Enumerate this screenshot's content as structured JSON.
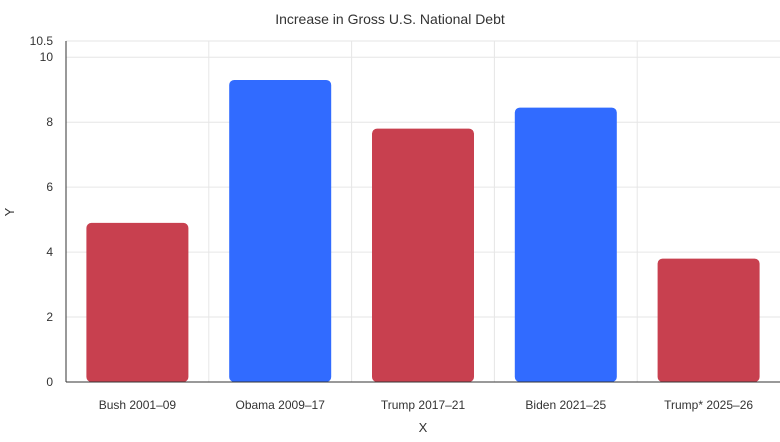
{
  "chart_data": {
    "type": "bar",
    "title": "Increase in Gross U.S. National Debt",
    "xlabel": "X",
    "ylabel": "Y",
    "categories": [
      "Bush 2001–09",
      "Obama 2009–17",
      "Trump 2017–21",
      "Biden 2021–25",
      "Trump* 2025–26"
    ],
    "values": [
      4.9,
      9.3,
      7.8,
      8.45,
      3.8
    ],
    "bar_colors": [
      "#c8404f",
      "#316bff",
      "#c8404f",
      "#316bff",
      "#c8404f"
    ],
    "ylim": [
      0,
      10.5
    ],
    "yticks": [
      0,
      2,
      4,
      6,
      8,
      10,
      10.5
    ],
    "grid": true,
    "legend": "none"
  }
}
